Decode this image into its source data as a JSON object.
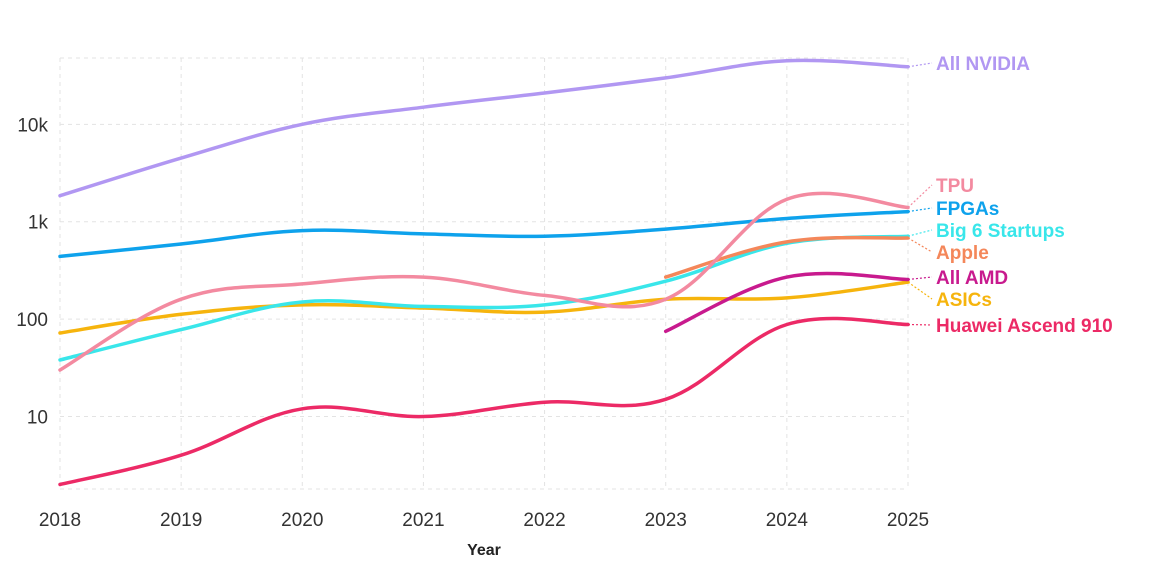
{
  "chart_data": {
    "type": "line",
    "xlabel": "Year",
    "ylabel": "",
    "yscale": "log",
    "xlim": [
      2018,
      2025
    ],
    "ylim": [
      1.8,
      48000
    ],
    "x_ticks": [
      2018,
      2019,
      2020,
      2021,
      2022,
      2023,
      2024,
      2025
    ],
    "y_ticks": [
      {
        "value": 10,
        "label": "10"
      },
      {
        "value": 100,
        "label": "100"
      },
      {
        "value": 1000,
        "label": "1k"
      },
      {
        "value": 10000,
        "label": "10k"
      }
    ],
    "grid": true,
    "legend": "inline labels at line ends, right",
    "series": [
      {
        "name": "All NVIDIA",
        "color": "#b197f2",
        "x": [
          2018,
          2019,
          2020,
          2021,
          2022,
          2023,
          2024,
          2025
        ],
        "y": [
          1850,
          4500,
          10000,
          15000,
          21000,
          30000,
          45000,
          39000
        ]
      },
      {
        "name": "TPU",
        "color": "#f38aa0",
        "x": [
          2018,
          2019,
          2020,
          2021,
          2022,
          2023,
          2024,
          2025
        ],
        "y": [
          30,
          160,
          230,
          270,
          175,
          160,
          1700,
          1400
        ]
      },
      {
        "name": "FPGAs",
        "color": "#0ea2ec",
        "x": [
          2018,
          2019,
          2020,
          2021,
          2022,
          2023,
          2024,
          2025
        ],
        "y": [
          440,
          590,
          810,
          750,
          710,
          840,
          1080,
          1270
        ]
      },
      {
        "name": "Big 6 Startups",
        "color": "#39e6ea",
        "x": [
          2018,
          2019,
          2020,
          2021,
          2022,
          2023,
          2024,
          2025
        ],
        "y": [
          38,
          78,
          150,
          135,
          140,
          245,
          600,
          710
        ]
      },
      {
        "name": "Apple",
        "color": "#f4875a",
        "x": [
          2023,
          2024,
          2025
        ],
        "y": [
          270,
          620,
          680
        ]
      },
      {
        "name": "All AMD",
        "color": "#c81a8e",
        "x": [
          2023,
          2024,
          2025
        ],
        "y": [
          75,
          270,
          255
        ]
      },
      {
        "name": "ASICs",
        "color": "#f6b40d",
        "x": [
          2018,
          2019,
          2020,
          2021,
          2022,
          2023,
          2024,
          2025
        ],
        "y": [
          72,
          112,
          140,
          130,
          118,
          160,
          165,
          240
        ]
      },
      {
        "name": "Huawei Ascend 910",
        "color": "#ec2a66",
        "x": [
          2018,
          2019,
          2020,
          2021,
          2022,
          2023,
          2024,
          2025
        ],
        "y": [
          2,
          4,
          12,
          10,
          14,
          15,
          88,
          88
        ]
      }
    ]
  }
}
